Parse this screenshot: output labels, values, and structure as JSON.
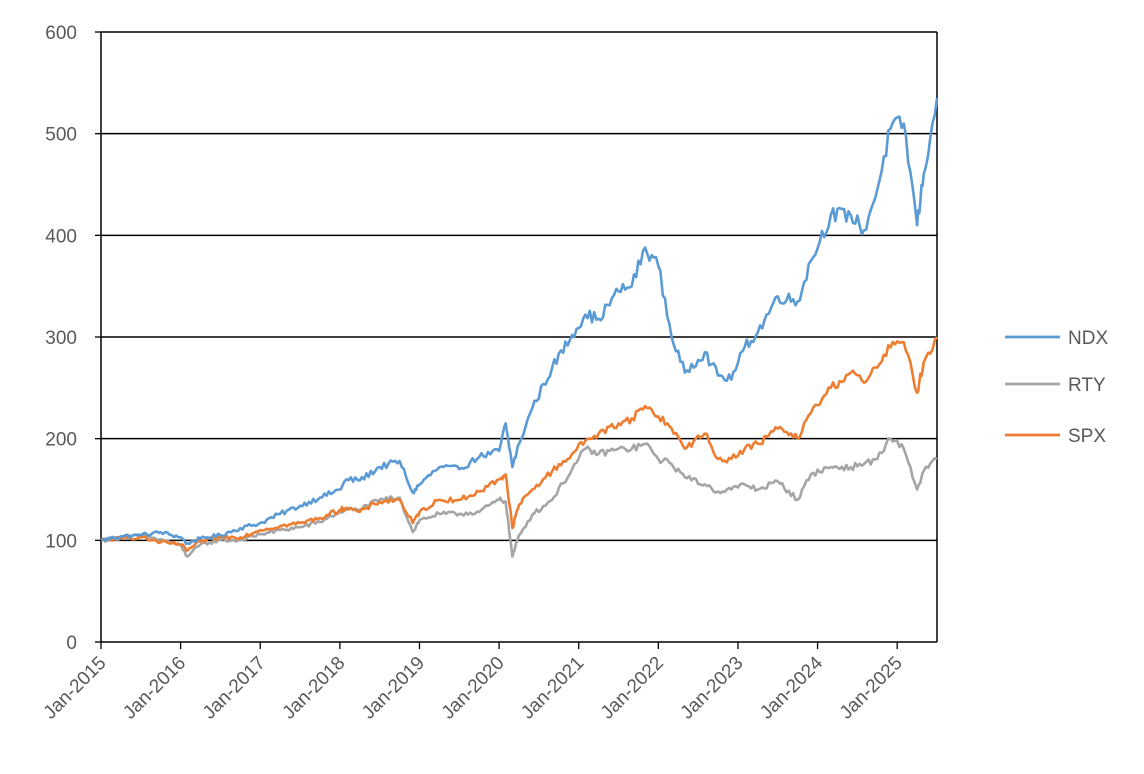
{
  "chart_data": {
    "type": "line",
    "title": "",
    "xlabel": "",
    "ylabel": "",
    "grid": "horizontal major gridlines",
    "legend_position": "right",
    "xlim": [
      "2015-01",
      "2025-07"
    ],
    "ylim": [
      0,
      600
    ],
    "y_ticks": [
      "0",
      "100",
      "200",
      "300",
      "400",
      "500",
      "600"
    ],
    "x_ticks": [
      "Jan-2015",
      "Jan-2016",
      "Jan-2017",
      "Jan-2018",
      "Jan-2019",
      "Jan-2020",
      "Jan-2021",
      "Jan-2022",
      "Jan-2023",
      "Jan-2024",
      "Jan-2025"
    ],
    "x": [
      "2015-01",
      "2015-04",
      "2015-07",
      "2015-10",
      "2016-01",
      "2016-02",
      "2016-04",
      "2016-07",
      "2016-10",
      "2017-01",
      "2017-04",
      "2017-07",
      "2017-10",
      "2018-01",
      "2018-02",
      "2018-04",
      "2018-07",
      "2018-10",
      "2018-12",
      "2019-01",
      "2019-04",
      "2019-07",
      "2019-10",
      "2020-01",
      "2020-02",
      "2020-03",
      "2020-04",
      "2020-06",
      "2020-09",
      "2020-12",
      "2021-02",
      "2021-04",
      "2021-07",
      "2021-09",
      "2021-11",
      "2022-01",
      "2022-03",
      "2022-05",
      "2022-08",
      "2022-10",
      "2022-12",
      "2023-02",
      "2023-04",
      "2023-07",
      "2023-10",
      "2023-12",
      "2024-03",
      "2024-06",
      "2024-08",
      "2024-10",
      "2024-12",
      "2025-02",
      "2025-04",
      "2025-05",
      "2025-07"
    ],
    "series": [
      {
        "name": "NDX",
        "color": "#5B9BD5",
        "values": [
          100,
          104,
          105,
          108,
          103,
          97,
          102,
          105,
          112,
          117,
          126,
          134,
          142,
          150,
          160,
          159,
          172,
          178,
          147,
          155,
          172,
          170,
          182,
          188,
          215,
          172,
          195,
          230,
          270,
          302,
          322,
          318,
          345,
          350,
          388,
          370,
          300,
          265,
          285,
          262,
          258,
          290,
          305,
          340,
          335,
          375,
          420,
          420,
          405,
          445,
          505,
          510,
          410,
          460,
          535
        ]
      },
      {
        "name": "RTY",
        "color": "#A5A5A5",
        "values": [
          100,
          103,
          104,
          101,
          95,
          84,
          96,
          100,
          100,
          106,
          110,
          113,
          118,
          128,
          130,
          130,
          140,
          142,
          108,
          120,
          126,
          126,
          128,
          140,
          138,
          84,
          105,
          125,
          140,
          170,
          190,
          185,
          190,
          190,
          195,
          180,
          175,
          162,
          155,
          148,
          150,
          155,
          150,
          158,
          140,
          165,
          172,
          172,
          175,
          180,
          200,
          190,
          150,
          168,
          180
        ]
      },
      {
        "name": "SPX",
        "color": "#ED7D31",
        "values": [
          100,
          102,
          103,
          98,
          96,
          90,
          99,
          103,
          103,
          110,
          114,
          117,
          122,
          130,
          132,
          128,
          138,
          140,
          117,
          128,
          140,
          140,
          148,
          160,
          165,
          112,
          135,
          150,
          168,
          185,
          198,
          205,
          215,
          220,
          232,
          222,
          210,
          190,
          205,
          180,
          180,
          190,
          195,
          210,
          200,
          225,
          250,
          265,
          255,
          270,
          290,
          295,
          245,
          275,
          300
        ]
      }
    ]
  }
}
